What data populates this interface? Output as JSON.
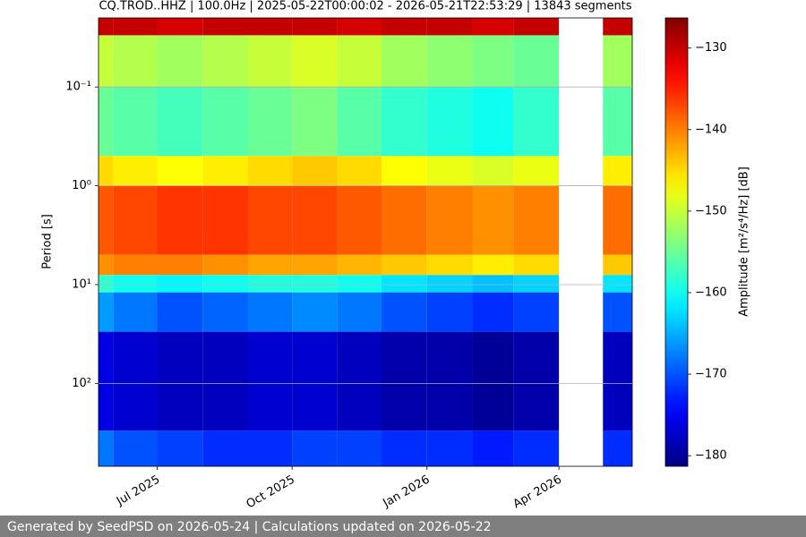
{
  "chart_data": {
    "type": "heatmap",
    "title": "CQ.TROD..HHZ | 100.0Hz | 2025-05-22T00:00:02 - 2026-05-21T22:53:29 | 13843 segments",
    "ylabel": "Period [s]",
    "colorbar_label": "Amplitude [m²/s⁴/Hz] [dB]",
    "colormap": "jet",
    "grid": true,
    "log_y": true,
    "x": [
      "2025-05",
      "2025-06",
      "2025-07",
      "2025-08",
      "2025-09",
      "2025-10",
      "2025-11",
      "2025-12",
      "2026-01",
      "2026-02",
      "2026-03",
      "2026-04",
      "2026-05"
    ],
    "xlim": [
      "2025-05-22",
      "2026-05-21"
    ],
    "xticks": [
      {
        "value": "2025-07",
        "label": "Jul 2025"
      },
      {
        "value": "2025-10",
        "label": "Oct 2025"
      },
      {
        "value": "2026-01",
        "label": "Jan 2026"
      },
      {
        "value": "2026-04",
        "label": "Apr 2026"
      }
    ],
    "y_bins": [
      0.02,
      0.03,
      0.1,
      0.5,
      1,
      5,
      8,
      12,
      30,
      300,
      690
    ],
    "ylim": [
      0.02,
      690
    ],
    "yticks": [
      {
        "value": 0.1,
        "label": "10⁻¹"
      },
      {
        "value": 1,
        "label": "10⁰"
      },
      {
        "value": 10,
        "label": "10¹"
      },
      {
        "value": 100,
        "label": "10²"
      }
    ],
    "values": [
      [
        -130,
        -130,
        -131,
        -130,
        -130,
        -130,
        -131,
        -130,
        -130,
        -131,
        -130,
        null,
        -130
      ],
      [
        -150,
        -151,
        -152,
        -151,
        -150,
        -149,
        -150,
        -152,
        -153,
        -154,
        -155,
        null,
        -152
      ],
      [
        -155,
        -156,
        -157,
        -156,
        -155,
        -154,
        -156,
        -158,
        -159,
        -160,
        -158,
        null,
        -156
      ],
      [
        -145,
        -146,
        -147,
        -146,
        -145,
        -144,
        -145,
        -147,
        -148,
        -149,
        -148,
        null,
        -146
      ],
      [
        -138,
        -137,
        -136,
        -136,
        -137,
        -137,
        -138,
        -139,
        -140,
        -141,
        -140,
        null,
        -139
      ],
      [
        -141,
        -140,
        -140,
        -141,
        -142,
        -142,
        -143,
        -144,
        -145,
        -146,
        -145,
        null,
        -144
      ],
      [
        -158,
        -160,
        -161,
        -160,
        -159,
        -159,
        -160,
        -162,
        -163,
        -164,
        -163,
        null,
        -162
      ],
      [
        -166,
        -168,
        -170,
        -169,
        -168,
        -167,
        -168,
        -170,
        -171,
        -172,
        -171,
        null,
        -170
      ],
      [
        -176,
        -177,
        -178,
        -178,
        -177,
        -177,
        -178,
        -179,
        -179,
        -180,
        -179,
        null,
        -178
      ],
      [
        -168,
        -170,
        -171,
        -172,
        -172,
        -171,
        -171,
        -172,
        -172,
        -173,
        -172,
        null,
        -172
      ]
    ],
    "clim": [
      -181.3,
      -126.3
    ],
    "cticks": [
      {
        "value": -180,
        "label": "−180"
      },
      {
        "value": -170,
        "label": "−170"
      },
      {
        "value": -160,
        "label": "−160"
      },
      {
        "value": -150,
        "label": "−150"
      },
      {
        "value": -140,
        "label": "−140"
      },
      {
        "value": -130,
        "label": "−130"
      }
    ]
  },
  "footer": "Generated by SeedPSD on 2026-05-24 | Calculations updated on 2026-05-22"
}
